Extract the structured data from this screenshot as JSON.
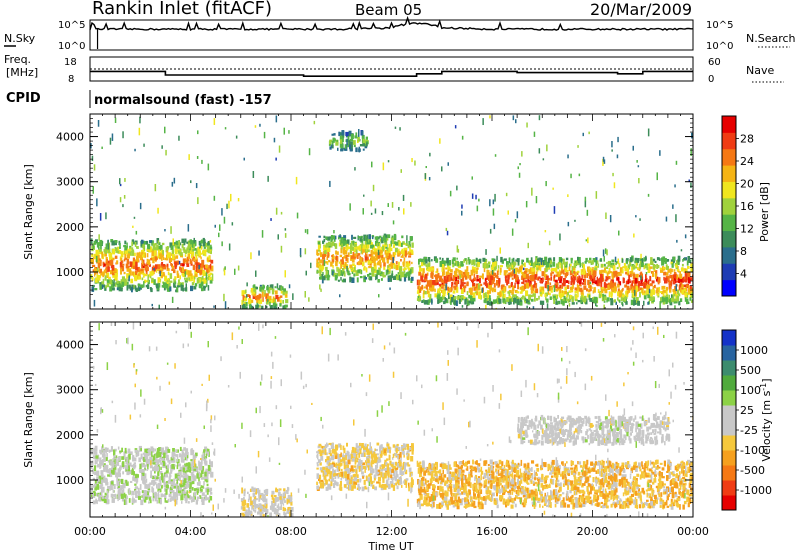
{
  "header": {
    "station": "Rankin Inlet (fitACF)",
    "beam": "Beam 05",
    "date": "20/Mar/2009"
  },
  "top_panels": {
    "nsky_label": "N.Sky",
    "nsearch_label": "N.Search",
    "nsky_ticks": [
      "10^5",
      "10^0"
    ],
    "nsearch_ticks": [
      "10^5",
      "10^0"
    ],
    "freq_label_1": "Freq.",
    "freq_label_2": "[MHz]",
    "freq_ticks": [
      "18",
      "8"
    ],
    "nave_ticks": [
      "60",
      "0"
    ],
    "nave_label": "Nave",
    "cpid_label": "CPID",
    "cpid_value": "normalsound (fast) -157"
  },
  "colorbars": {
    "power_title": "Power [dB]",
    "power_ticks": [
      "28",
      "24",
      "20",
      "16",
      "12",
      "8",
      "4"
    ],
    "power_colors": [
      "#0000ff",
      "#1e3cb4",
      "#2a6e8c",
      "#3c8c5a",
      "#55b446",
      "#a0d23c",
      "#f0e61e",
      "#f5b414",
      "#f57814",
      "#f03c14",
      "#e60000"
    ],
    "velocity_title": "Velocity [m s",
    "velocity_units_sup": "-1",
    "velocity_units_end": "]",
    "velocity_ticks": [
      "1000",
      "500",
      "100",
      "25",
      "-25",
      "-100",
      "-500",
      "-1000"
    ],
    "velocity_colors": [
      "#e60000",
      "#f03c14",
      "#f57814",
      "#f5a01e",
      "#f5c83c",
      "#c8c8c8",
      "#c8c8c8",
      "#8cd246",
      "#50aa3c",
      "#3c8c6e",
      "#2864a0",
      "#1432c8"
    ]
  },
  "chart_data": [
    {
      "type": "line",
      "name": "N.Sky / N.Search",
      "y_scale": "log",
      "ylim": [
        1,
        100000
      ],
      "x": [
        "00:00",
        "02:00",
        "04:00",
        "06:00",
        "08:00",
        "10:00",
        "12:00",
        "13:00",
        "14:00",
        "16:00",
        "18:00",
        "20:00",
        "22:00",
        "00:00"
      ],
      "series": [
        {
          "name": "N.Sky",
          "values": [
            3000,
            3000,
            3000,
            3000,
            3000,
            3000,
            5000,
            30000,
            5000,
            3000,
            3000,
            3000,
            3000,
            3000
          ]
        }
      ]
    },
    {
      "type": "line",
      "name": "Freq / Nave",
      "ylim": [
        8,
        18
      ],
      "x": [
        "00:00",
        "02:00",
        "03:00",
        "04:00",
        "08:00",
        "08:30",
        "12:00",
        "13:00",
        "14:00",
        "16:00",
        "17:00",
        "19:00",
        "21:00",
        "22:00",
        "00:00"
      ],
      "series": [
        {
          "name": "Freq",
          "values": [
            12,
            12,
            10.5,
            10.5,
            10.5,
            10,
            10,
            11,
            12,
            12,
            11.5,
            11.5,
            11,
            12,
            12
          ]
        }
      ]
    },
    {
      "type": "heatmap",
      "name": "Power",
      "ylabel": "Slant Range [km]",
      "xlabel": "Time UT",
      "xlim": [
        "00:00",
        "24:00"
      ],
      "ylim": [
        180,
        4500
      ],
      "x_ticks": [
        "00:00",
        "04:00",
        "08:00",
        "12:00",
        "16:00",
        "20:00",
        "00:00"
      ],
      "y_ticks": [
        1000,
        2000,
        3000,
        4000
      ],
      "colorbar": {
        "label": "Power [dB]",
        "ticks": [
          4,
          8,
          12,
          16,
          20,
          24,
          28
        ]
      },
      "bands": [
        {
          "t_start": 0.0,
          "t_end": 4.8,
          "range_start": 600,
          "range_end": 1700,
          "peak_db": 26
        },
        {
          "t_start": 6.0,
          "t_end": 7.8,
          "range_start": 200,
          "range_end": 700,
          "peak_db": 24
        },
        {
          "t_start": 9.0,
          "t_end": 12.8,
          "range_start": 800,
          "range_end": 1800,
          "peak_db": 24
        },
        {
          "t_start": 13.0,
          "t_end": 24.0,
          "range_start": 300,
          "range_end": 1300,
          "peak_db": 28
        },
        {
          "t_start": 9.5,
          "t_end": 11.0,
          "range_start": 3700,
          "range_end": 4100,
          "peak_db": 14
        }
      ]
    },
    {
      "type": "heatmap",
      "name": "Velocity",
      "ylabel": "Slant Range [km]",
      "xlabel": "Time UT",
      "xlim": [
        "00:00",
        "24:00"
      ],
      "ylim": [
        180,
        4500
      ],
      "x_ticks": [
        "00:00",
        "04:00",
        "08:00",
        "12:00",
        "16:00",
        "20:00",
        "00:00"
      ],
      "y_ticks": [
        1000,
        2000,
        3000,
        4000
      ],
      "colorbar": {
        "label": "Velocity [m s^-1]",
        "ticks": [
          1000,
          500,
          100,
          25,
          -25,
          -100,
          -500,
          -1000
        ]
      },
      "bands": [
        {
          "t_start": 0.0,
          "t_end": 4.8,
          "range_start": 500,
          "range_end": 1700,
          "velocity": 100
        },
        {
          "t_start": 6.0,
          "t_end": 8.0,
          "range_start": 200,
          "range_end": 800,
          "velocity": -100
        },
        {
          "t_start": 9.0,
          "t_end": 12.8,
          "range_start": 800,
          "range_end": 1800,
          "velocity": -200
        },
        {
          "t_start": 13.0,
          "t_end": 24.0,
          "range_start": 400,
          "range_end": 1400,
          "velocity": -300
        },
        {
          "t_start": 17.0,
          "t_end": 23.0,
          "range_start": 1800,
          "range_end": 2400,
          "velocity": 0
        }
      ]
    }
  ],
  "x_axis": {
    "ticks": [
      "00:00",
      "04:00",
      "08:00",
      "12:00",
      "16:00",
      "20:00",
      "00:00"
    ],
    "title": "Time UT"
  },
  "y_axis": {
    "title": "Slant Range [km]",
    "ticks": [
      "1000",
      "2000",
      "3000",
      "4000"
    ]
  }
}
